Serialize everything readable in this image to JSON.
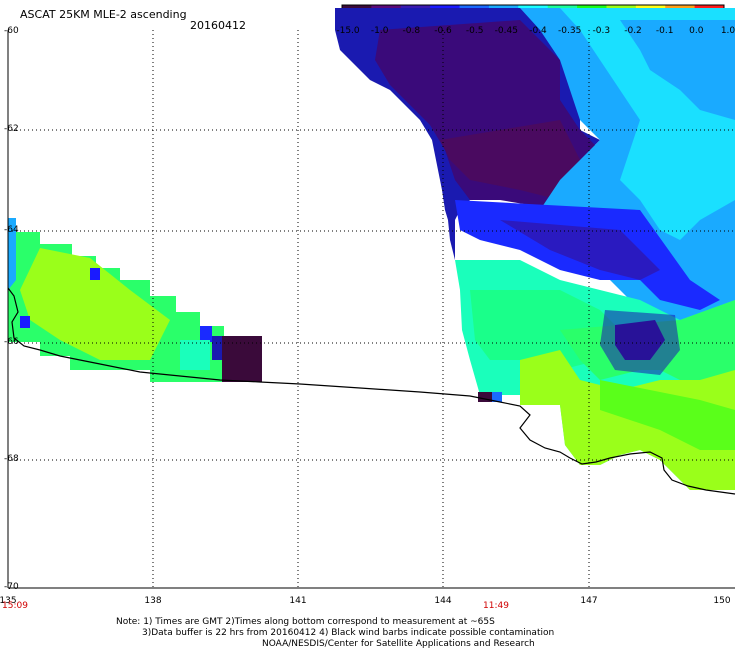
{
  "header": {
    "title": "ASCAT 25KM MLE-2 ascending",
    "date": "20160412"
  },
  "colorbar": {
    "labels": [
      "-15.0",
      "-1.0",
      "-0.8",
      "-0.6",
      "-0.5",
      "-0.45",
      "-0.4",
      "-0.35",
      "-0.3",
      "-0.2",
      "-0.1",
      "0.0",
      "1.0"
    ],
    "colors": [
      "#3a0a3a",
      "#5a0a7a",
      "#3a1ab0",
      "#1a1aff",
      "#1a6aff",
      "#1aaaff",
      "#1affff",
      "#1aff9a",
      "#1aff1a",
      "#9aff1a",
      "#ffff1a",
      "#ffa01a",
      "#ff1a1a"
    ]
  },
  "axes": {
    "y_labels": [
      "-60",
      "-62",
      "-64",
      "-66",
      "-68",
      "-70"
    ],
    "x_labels": [
      "135",
      "138",
      "141",
      "144",
      "147",
      "150"
    ],
    "time_labels": [
      "15:09",
      "11:49"
    ]
  },
  "footer": {
    "line1": "Note: 1) Times are GMT 2)Times along bottom correspond to measurement at ~65S",
    "line2": "3)Data buffer is 22 hrs from 20160412 4) Black wind barbs indicate possible contamination",
    "line3": "NOAA/NESDIS/Center for Satellite Applications and Research"
  }
}
